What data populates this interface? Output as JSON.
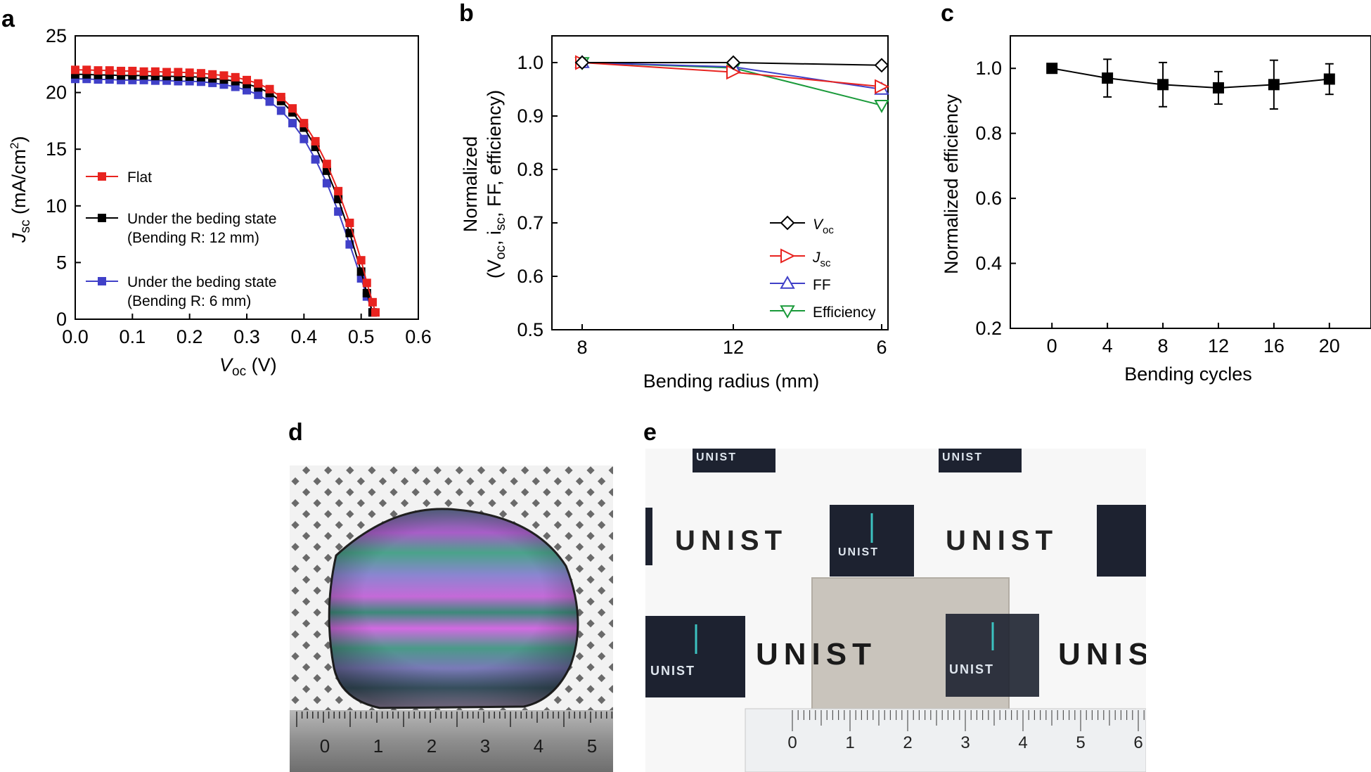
{
  "panels": {
    "a": "a",
    "b": "b",
    "c": "c",
    "d": "d",
    "e": "e"
  },
  "colors": {
    "red": "#e8231f",
    "black": "#000000",
    "blue": "#4040c8",
    "green": "#1a9a3a"
  },
  "chart_data": [
    {
      "id": "a",
      "type": "line",
      "title": "",
      "xlabel_main": "V",
      "xlabel_sub": "oc",
      "xlabel_unit": " (V)",
      "ylabel_main": "J",
      "ylabel_sub": "sc",
      "ylabel_unit": " (mA/cm",
      "ylabel_sup": "2",
      "ylabel_close": ")",
      "xlim": [
        0,
        0.6
      ],
      "ylim": [
        0,
        25
      ],
      "xticks": [
        "0.0",
        "0.1",
        "0.2",
        "0.3",
        "0.4",
        "0.5",
        "0.6"
      ],
      "yticks": [
        "0",
        "5",
        "10",
        "15",
        "20",
        "25"
      ],
      "legend_position": "center-left",
      "series": [
        {
          "name": "Flat",
          "color": "red",
          "x": [
            0,
            0.02,
            0.04,
            0.06,
            0.08,
            0.1,
            0.12,
            0.14,
            0.16,
            0.18,
            0.2,
            0.22,
            0.24,
            0.26,
            0.28,
            0.3,
            0.32,
            0.34,
            0.36,
            0.38,
            0.4,
            0.42,
            0.44,
            0.46,
            0.48,
            0.5,
            0.51,
            0.52,
            0.525
          ],
          "y": [
            22.0,
            22.0,
            21.95,
            21.95,
            21.9,
            21.9,
            21.85,
            21.85,
            21.8,
            21.8,
            21.75,
            21.7,
            21.6,
            21.5,
            21.35,
            21.1,
            20.8,
            20.3,
            19.6,
            18.6,
            17.3,
            15.7,
            13.7,
            11.3,
            8.5,
            5.2,
            3.2,
            1.5,
            0.6
          ]
        },
        {
          "name": "Under the beding state",
          "name2": "(Bending R: 12 mm)",
          "color": "black",
          "x": [
            0,
            0.02,
            0.04,
            0.06,
            0.08,
            0.1,
            0.12,
            0.14,
            0.16,
            0.18,
            0.2,
            0.22,
            0.24,
            0.26,
            0.28,
            0.3,
            0.32,
            0.34,
            0.36,
            0.38,
            0.4,
            0.42,
            0.44,
            0.46,
            0.48,
            0.5,
            0.51,
            0.52
          ],
          "y": [
            21.6,
            21.6,
            21.55,
            21.55,
            21.5,
            21.5,
            21.5,
            21.45,
            21.45,
            21.4,
            21.4,
            21.35,
            21.25,
            21.15,
            21.0,
            20.75,
            20.45,
            19.95,
            19.25,
            18.25,
            16.9,
            15.2,
            13.1,
            10.6,
            7.6,
            4.2,
            2.3,
            0.6
          ]
        },
        {
          "name": "Under the beding state",
          "name2": "(Bending R: 6 mm)",
          "color": "blue",
          "x": [
            0,
            0.02,
            0.04,
            0.06,
            0.08,
            0.1,
            0.12,
            0.14,
            0.16,
            0.18,
            0.2,
            0.22,
            0.24,
            0.26,
            0.28,
            0.3,
            0.32,
            0.34,
            0.36,
            0.38,
            0.4,
            0.42,
            0.44,
            0.46,
            0.48,
            0.5,
            0.51,
            0.52
          ],
          "y": [
            21.2,
            21.2,
            21.15,
            21.15,
            21.1,
            21.1,
            21.1,
            21.05,
            21.05,
            21.0,
            21.0,
            20.95,
            20.85,
            20.7,
            20.5,
            20.2,
            19.8,
            19.2,
            18.4,
            17.3,
            15.9,
            14.1,
            12.0,
            9.5,
            6.6,
            3.6,
            2.0,
            0.6
          ]
        }
      ]
    },
    {
      "id": "b",
      "type": "line",
      "xlabel": "Bending radius (mm)",
      "ylabel_line1": "Normalized",
      "ylabel_line2": {
        "p1": "(V",
        "s1": "oc",
        "p2": ", i",
        "s2": "sc",
        "p3": ", FF, efficiency)"
      },
      "categories": [
        "8",
        "12",
        "6"
      ],
      "ylim": [
        0.5,
        1.05
      ],
      "yticks": [
        "0.5",
        "0.6",
        "0.7",
        "0.8",
        "0.9",
        "1.0"
      ],
      "legend_position": "bottom-right",
      "series": [
        {
          "name": "V",
          "sub": "oc",
          "italic": true,
          "marker": "diamond",
          "color": "black",
          "values": [
            1.0,
            1.0,
            0.995
          ]
        },
        {
          "name": "J",
          "sub": "sc",
          "italic": true,
          "marker": "triangle-right",
          "color": "red",
          "values": [
            1.0,
            0.982,
            0.955
          ]
        },
        {
          "name": "FF",
          "sub": "",
          "italic": false,
          "marker": "triangle-up",
          "color": "blue",
          "values": [
            1.0,
            0.992,
            0.95
          ]
        },
        {
          "name": "Efficiency",
          "sub": "",
          "italic": false,
          "marker": "triangle-down",
          "color": "green",
          "values": [
            1.0,
            0.99,
            0.92
          ]
        }
      ]
    },
    {
      "id": "c",
      "type": "line",
      "xlabel": "Bending cycles",
      "ylabel": "Normalized efficiency",
      "xlim": [
        -3,
        23
      ],
      "ylim": [
        0.2,
        1.1
      ],
      "xticks": [
        "0",
        "4",
        "8",
        "12",
        "16",
        "20"
      ],
      "yticks": [
        "0.2",
        "0.4",
        "0.6",
        "0.8",
        "1.0"
      ],
      "x": [
        0,
        4,
        8,
        12,
        16,
        20
      ],
      "values": [
        1.0,
        0.97,
        0.95,
        0.94,
        0.95,
        0.967
      ],
      "errors": [
        0,
        0.058,
        0.068,
        0.05,
        0.075,
        0.047
      ],
      "color": "black"
    }
  ],
  "photo_d": {
    "ruler_numbers": [
      "0",
      "1",
      "2",
      "3",
      "4",
      "5"
    ]
  },
  "photo_e": {
    "brand": "UNIST",
    "logo_text": "UNIST",
    "ruler_numbers": [
      "0",
      "1",
      "2",
      "3",
      "4",
      "5",
      "6"
    ]
  }
}
